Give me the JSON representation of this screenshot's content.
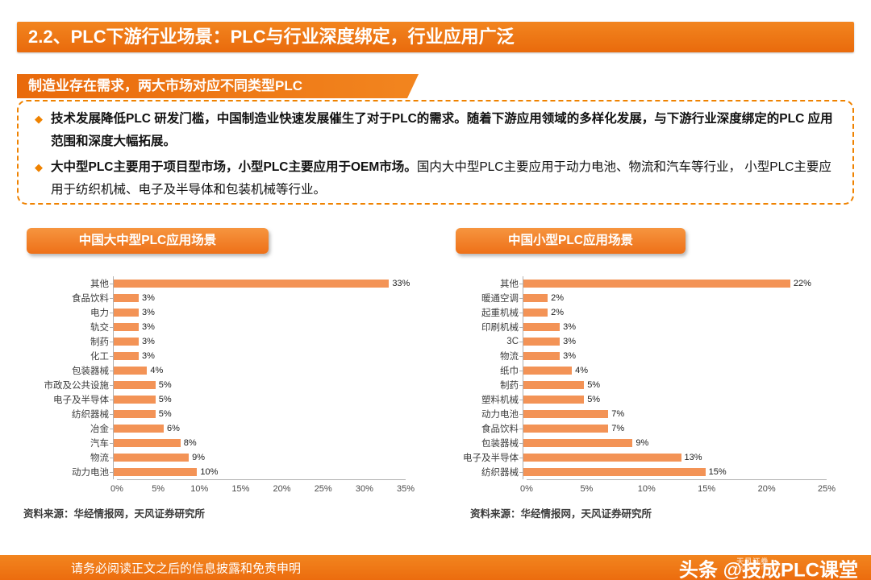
{
  "page": {
    "title": "2.2、PLC下游行业场景：PLC与行业深度绑定，行业应用广泛",
    "section_tag": "制造业存在需求，两大市场对应不同类型PLC",
    "bullets": [
      {
        "segments": [
          {
            "text": "技术发展降低PLC 研发门槛，中国制造业快速发展催生了对于PLC的需求。随着下游应用领域的多样化发展，与下游行业深度绑定的PLC 应用范围和深度大幅拓展。",
            "bold": true
          }
        ]
      },
      {
        "segments": [
          {
            "text": "大中型PLC主要用于项目型市场，小型PLC主要应用于OEM市场。",
            "bold": true
          },
          {
            "text": "国内大中型PLC主要应用于动力电池、物流和汽车等行业， 小型PLC主要应用于纺织机械、电子及半导体和包装机械等行业。",
            "bold": false
          }
        ]
      }
    ],
    "footer": {
      "disclaimer": "请务必阅读正文之后的信息披露和免责申明",
      "logo_line1": "天风证券",
      "logo_line2": "TF SECURITIES",
      "watermark": "头条 @技成PLC课堂"
    }
  },
  "colors": {
    "primary_orange": "#ED6F12",
    "bar_orange": "#F39356",
    "dashed_border": "#EF8200"
  },
  "chart_data": [
    {
      "type": "bar",
      "orientation": "horizontal",
      "title": "中国大中型PLC应用场景",
      "categories": [
        "其他",
        "食品饮料",
        "电力",
        "轨交",
        "制药",
        "化工",
        "包装器械",
        "市政及公共设施",
        "电子及半导体",
        "纺织器械",
        "冶金",
        "汽车",
        "物流",
        "动力电池"
      ],
      "values": [
        33,
        3,
        3,
        3,
        3,
        3,
        4,
        5,
        5,
        5,
        6,
        8,
        9,
        10
      ],
      "value_suffix": "%",
      "xlim": [
        0,
        35
      ],
      "ticks": [
        "0%",
        "5%",
        "10%",
        "15%",
        "20%",
        "25%",
        "30%",
        "35%"
      ],
      "grid": false,
      "legend": "none",
      "source": "资料来源：华经情报网，天风证券研究所"
    },
    {
      "type": "bar",
      "orientation": "horizontal",
      "title": "中国小型PLC应用场景",
      "categories": [
        "其他",
        "暖通空调",
        "起重机械",
        "印刷机械",
        "3C",
        "物流",
        "纸巾",
        "制药",
        "塑料机械",
        "动力电池",
        "食品饮料",
        "包装器械",
        "电子及半导体",
        "纺织器械"
      ],
      "values": [
        22,
        2,
        2,
        3,
        3,
        3,
        4,
        5,
        5,
        7,
        7,
        9,
        13,
        15
      ],
      "value_suffix": "%",
      "xlim": [
        0,
        25
      ],
      "ticks": [
        "0%",
        "5%",
        "10%",
        "15%",
        "20%",
        "25%"
      ],
      "grid": false,
      "legend": "none",
      "source": "资料来源：华经情报网，天风证券研究所"
    }
  ]
}
